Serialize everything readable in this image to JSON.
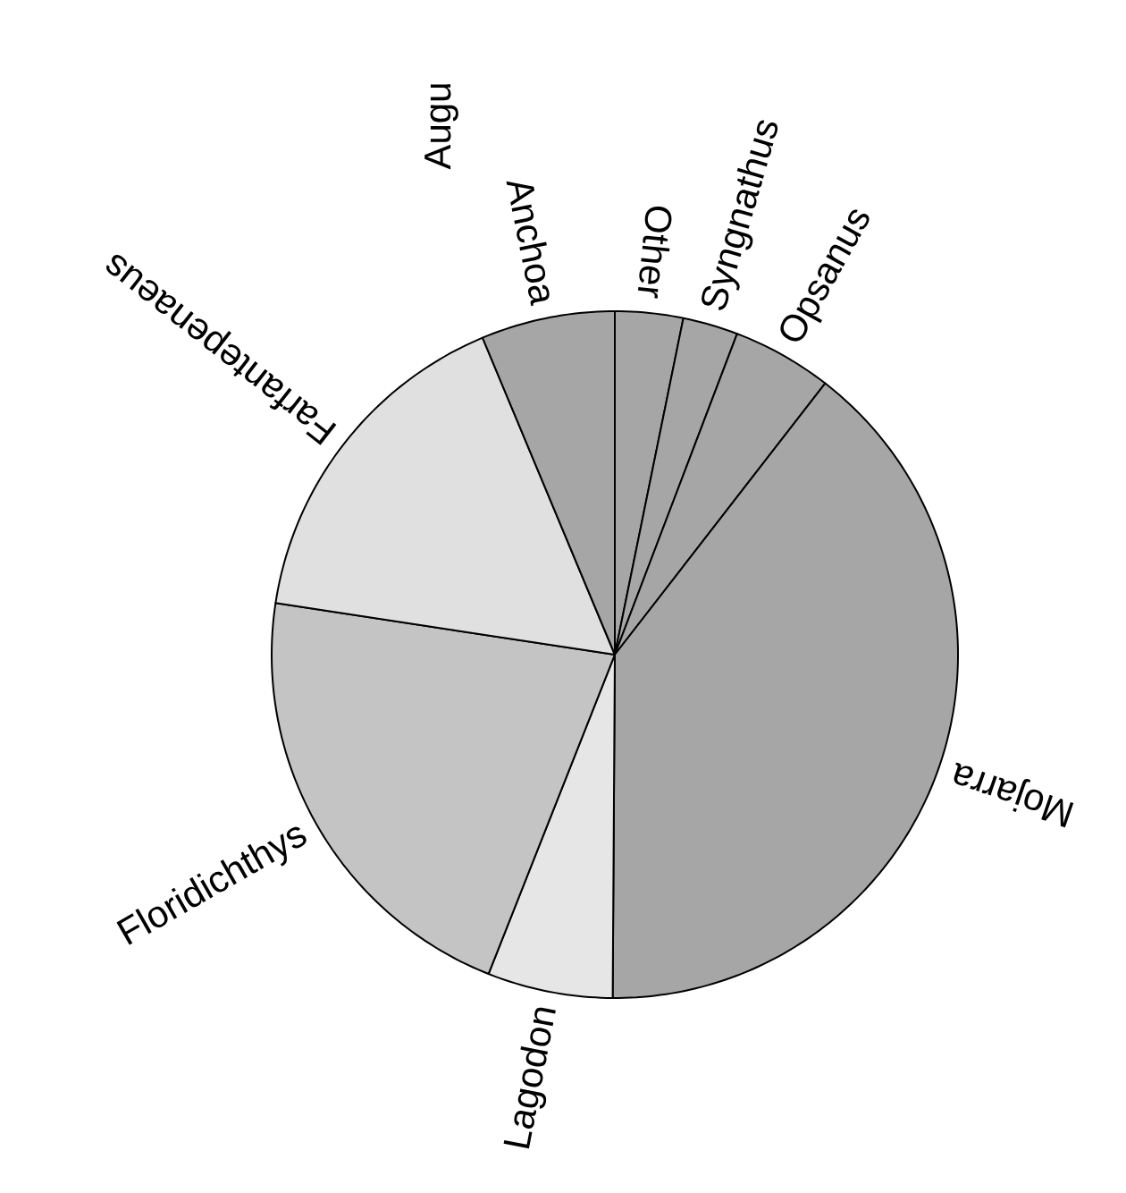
{
  "chart_data": {
    "type": "pie",
    "title": "Augu",
    "categories": [
      "Other",
      "Syngnathus",
      "Opsanus",
      "Mojarra",
      "Lagodon",
      "Floridichthys",
      "Farfantepenaeus",
      "Anchoa"
    ],
    "values": [
      3.2,
      2.6,
      4.7,
      39.6,
      5.9,
      21.4,
      16.3,
      6.3
    ],
    "colors": [
      "#a6a6a6",
      "#a6a6a6",
      "#a6a6a6",
      "#a6a6a6",
      "#e6e6e6",
      "#c4c4c4",
      "#e0e0e0",
      "#a6a6a6"
    ]
  }
}
